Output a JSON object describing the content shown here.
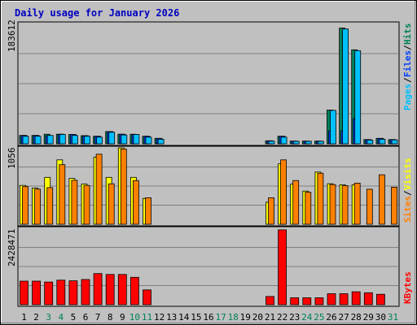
{
  "title": "Daily usage for January 2026",
  "colors": {
    "background": "#c0c0c0",
    "plot_border": "#000000",
    "gridline": "#808080",
    "hits": "#00805c",
    "files": "#0040ff",
    "pages": "#00c0ff",
    "visits": "#ffff00",
    "sites": "#ff8000",
    "kbytes": "#ff0000",
    "title_text": "#0000c0",
    "weekend_text": "#00805c",
    "weekday_text": "#000000"
  },
  "panels": {
    "hits_files_pages": {
      "max_label": "183612",
      "legend": [
        "Pages",
        "Files",
        "Hits"
      ]
    },
    "visits_sites": {
      "max_label": "1056",
      "legend": [
        "Sites",
        "Visits"
      ]
    },
    "kbytes": {
      "max_label": "2428471",
      "legend": [
        "KBytes"
      ]
    }
  },
  "chart_data": {
    "type": "bar",
    "title": "Daily usage for January 2026",
    "categories": [
      "1",
      "2",
      "3",
      "4",
      "5",
      "6",
      "7",
      "8",
      "9",
      "10",
      "11",
      "12",
      "13",
      "14",
      "15",
      "16",
      "17",
      "18",
      "19",
      "20",
      "21",
      "22",
      "23",
      "24",
      "25",
      "26",
      "27",
      "28",
      "29",
      "30",
      "31"
    ],
    "weekend_days": [
      "3",
      "4",
      "10",
      "11",
      "17",
      "18",
      "24",
      "25",
      "31"
    ],
    "panels": [
      {
        "name": "hits_files_pages",
        "ylim": [
          0,
          183612
        ],
        "series": [
          {
            "name": "Hits",
            "values": [
              12800,
              12800,
              14700,
              14700,
              14300,
              12400,
              11500,
              18700,
              14700,
              14700,
              11500,
              8300,
              0,
              0,
              0,
              0,
              0,
              0,
              0,
              0,
              4600,
              11500,
              4100,
              4100,
              4100,
              51600,
              176800,
              143600,
              6400,
              8300,
              6400
            ]
          },
          {
            "name": "Files",
            "values": [
              12800,
              12800,
              12100,
              14700,
              14300,
              12400,
              11500,
              18700,
              14700,
              14300,
              11500,
              8300,
              0,
              0,
              0,
              0,
              0,
              0,
              0,
              0,
              4600,
              11500,
              4100,
              4100,
              4100,
              19900,
              19900,
              38400,
              6400,
              8300,
              6400
            ]
          },
          {
            "name": "Pages",
            "values": [
              11500,
              11500,
              12800,
              14300,
              12800,
              11500,
              10200,
              17600,
              13500,
              14300,
              10200,
              7000,
              0,
              0,
              0,
              0,
              0,
              0,
              0,
              0,
              4100,
              10200,
              3800,
              3800,
              3800,
              51000,
              175300,
              142300,
              5700,
              7000,
              6000
            ]
          }
        ]
      },
      {
        "name": "visits_sites",
        "ylim": [
          0,
          1056
        ],
        "series": [
          {
            "name": "Visits",
            "values": [
              537,
              500,
              648,
              890,
              634,
              555,
              926,
              648,
              1056,
              648,
              356,
              0,
              0,
              0,
              0,
              0,
              0,
              0,
              0,
              0,
              305,
              835,
              555,
              458,
              721,
              561,
              546,
              546,
              0,
              0,
              0
            ]
          },
          {
            "name": "Sites",
            "values": [
              520,
              485,
              507,
              824,
              608,
              537,
              968,
              560,
              1040,
              604,
              366,
              0,
              0,
              0,
              0,
              0,
              0,
              0,
              0,
              0,
              366,
              890,
              604,
              443,
              706,
              548,
              533,
              568,
              484,
              684,
              512
            ]
          }
        ]
      },
      {
        "name": "kbytes",
        "ylim": [
          0,
          2428471
        ],
        "series": [
          {
            "name": "KBytes",
            "values": [
              750000,
              750000,
              720000,
              780000,
              760000,
              800000,
              990000,
              960000,
              960000,
              870000,
              470000,
              0,
              0,
              0,
              0,
              0,
              0,
              0,
              0,
              0,
              260000,
              2380000,
              220000,
              220000,
              220000,
              350000,
              350000,
              410000,
              380000,
              330000,
              0
            ]
          }
        ]
      }
    ]
  }
}
